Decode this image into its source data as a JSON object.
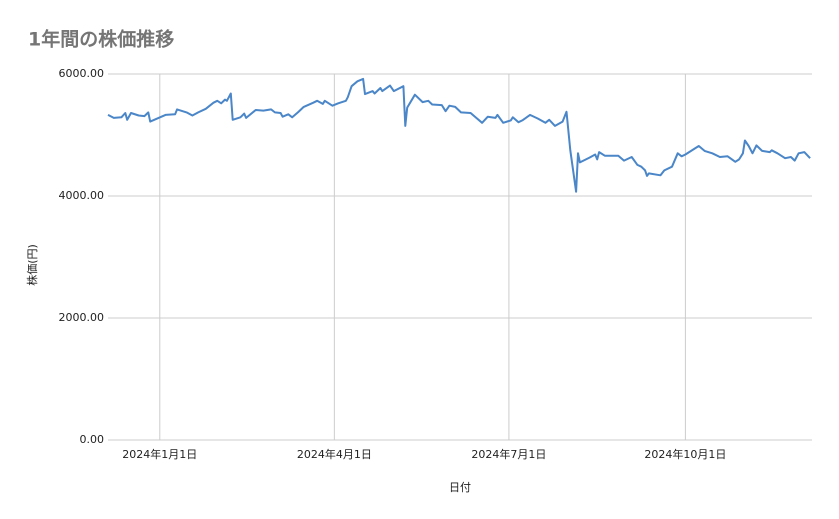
{
  "chart_data": {
    "type": "line",
    "title": "1年間の株価推移",
    "x_label": "日付",
    "y_label": "株価(円)",
    "color": "#4a86c8",
    "grid": true,
    "xlim": [
      "2023-12-05",
      "2024-12-06"
    ],
    "xticks": [
      {
        "value": "2024-01-01",
        "label": "2024年1月1日"
      },
      {
        "value": "2024-04-01",
        "label": "2024年4月1日"
      },
      {
        "value": "2024-07-01",
        "label": "2024年7月1日"
      },
      {
        "value": "2024-10-01",
        "label": "2024年10月1日"
      }
    ],
    "ylim": [
      0,
      6000
    ],
    "yticks": [
      {
        "value": 0,
        "label": "0.00"
      },
      {
        "value": 2000,
        "label": "2000.00"
      },
      {
        "value": 4000,
        "label": "4000.00"
      },
      {
        "value": 6000,
        "label": "6000.00"
      }
    ],
    "x": [
      "2023-12-05",
      "2023-12-08",
      "2023-12-12",
      "2023-12-14",
      "2023-12-15",
      "2023-12-17",
      "2023-12-21",
      "2023-12-24",
      "2023-12-26",
      "2023-12-27",
      "2024-01-04",
      "2024-01-09",
      "2024-01-10",
      "2024-01-15",
      "2024-01-18",
      "2024-01-21",
      "2024-01-25",
      "2024-01-29",
      "2024-01-31",
      "2024-02-02",
      "2024-02-04",
      "2024-02-05",
      "2024-02-07",
      "2024-02-08",
      "2024-02-12",
      "2024-02-14",
      "2024-02-15",
      "2024-02-20",
      "2024-02-24",
      "2024-02-28",
      "2024-03-01",
      "2024-03-04",
      "2024-03-05",
      "2024-03-08",
      "2024-03-10",
      "2024-03-13",
      "2024-03-16",
      "2024-03-21",
      "2024-03-23",
      "2024-03-26",
      "2024-03-27",
      "2024-03-31",
      "2024-04-03",
      "2024-04-07",
      "2024-04-08",
      "2024-04-10",
      "2024-04-13",
      "2024-04-16",
      "2024-04-17",
      "2024-04-21",
      "2024-04-22",
      "2024-04-25",
      "2024-04-26",
      "2024-04-30",
      "2024-05-02",
      "2024-05-07",
      "2024-05-08",
      "2024-05-09",
      "2024-05-13",
      "2024-05-17",
      "2024-05-20",
      "2024-05-22",
      "2024-05-27",
      "2024-05-29",
      "2024-05-31",
      "2024-06-03",
      "2024-06-06",
      "2024-06-11",
      "2024-06-14",
      "2024-06-17",
      "2024-06-20",
      "2024-06-24",
      "2024-06-25",
      "2024-06-28",
      "2024-07-02",
      "2024-07-03",
      "2024-07-06",
      "2024-07-08",
      "2024-07-12",
      "2024-07-16",
      "2024-07-20",
      "2024-07-22",
      "2024-07-25",
      "2024-07-29",
      "2024-07-31",
      "2024-08-02",
      "2024-08-05",
      "2024-08-06",
      "2024-08-07",
      "2024-08-12",
      "2024-08-15",
      "2024-08-16",
      "2024-08-17",
      "2024-08-20",
      "2024-08-27",
      "2024-08-30",
      "2024-09-03",
      "2024-09-06",
      "2024-09-08",
      "2024-09-10",
      "2024-09-11",
      "2024-09-12",
      "2024-09-18",
      "2024-09-20",
      "2024-09-24",
      "2024-09-27",
      "2024-09-29",
      "2024-10-01",
      "2024-10-06",
      "2024-10-08",
      "2024-10-11",
      "2024-10-15",
      "2024-10-19",
      "2024-10-23",
      "2024-10-27",
      "2024-10-29",
      "2024-10-31",
      "2024-11-01",
      "2024-11-03",
      "2024-11-05",
      "2024-11-07",
      "2024-11-10",
      "2024-11-14",
      "2024-11-15",
      "2024-11-18",
      "2024-11-22",
      "2024-11-25",
      "2024-11-27",
      "2024-11-29",
      "2024-12-02",
      "2024-12-05"
    ],
    "values": [
      5330,
      5280,
      5290,
      5360,
      5250,
      5360,
      5320,
      5310,
      5370,
      5220,
      5330,
      5340,
      5420,
      5370,
      5320,
      5370,
      5430,
      5530,
      5560,
      5520,
      5580,
      5560,
      5680,
      5250,
      5290,
      5350,
      5280,
      5410,
      5400,
      5420,
      5370,
      5360,
      5300,
      5340,
      5290,
      5370,
      5460,
      5530,
      5560,
      5510,
      5560,
      5480,
      5520,
      5560,
      5620,
      5800,
      5880,
      5920,
      5670,
      5720,
      5680,
      5770,
      5720,
      5810,
      5720,
      5800,
      5150,
      5450,
      5660,
      5540,
      5560,
      5500,
      5490,
      5390,
      5480,
      5460,
      5370,
      5360,
      5280,
      5200,
      5300,
      5280,
      5330,
      5200,
      5240,
      5290,
      5210,
      5240,
      5330,
      5270,
      5200,
      5250,
      5150,
      5220,
      5380,
      4750,
      4070,
      4700,
      4550,
      4630,
      4680,
      4600,
      4720,
      4660,
      4660,
      4580,
      4640,
      4510,
      4480,
      4420,
      4330,
      4370,
      4340,
      4420,
      4480,
      4700,
      4650,
      4680,
      4780,
      4820,
      4740,
      4700,
      4640,
      4650,
      4560,
      4600,
      4700,
      4910,
      4820,
      4700,
      4830,
      4740,
      4720,
      4750,
      4700,
      4620,
      4640,
      4580,
      4700,
      4720,
      4620
    ]
  }
}
